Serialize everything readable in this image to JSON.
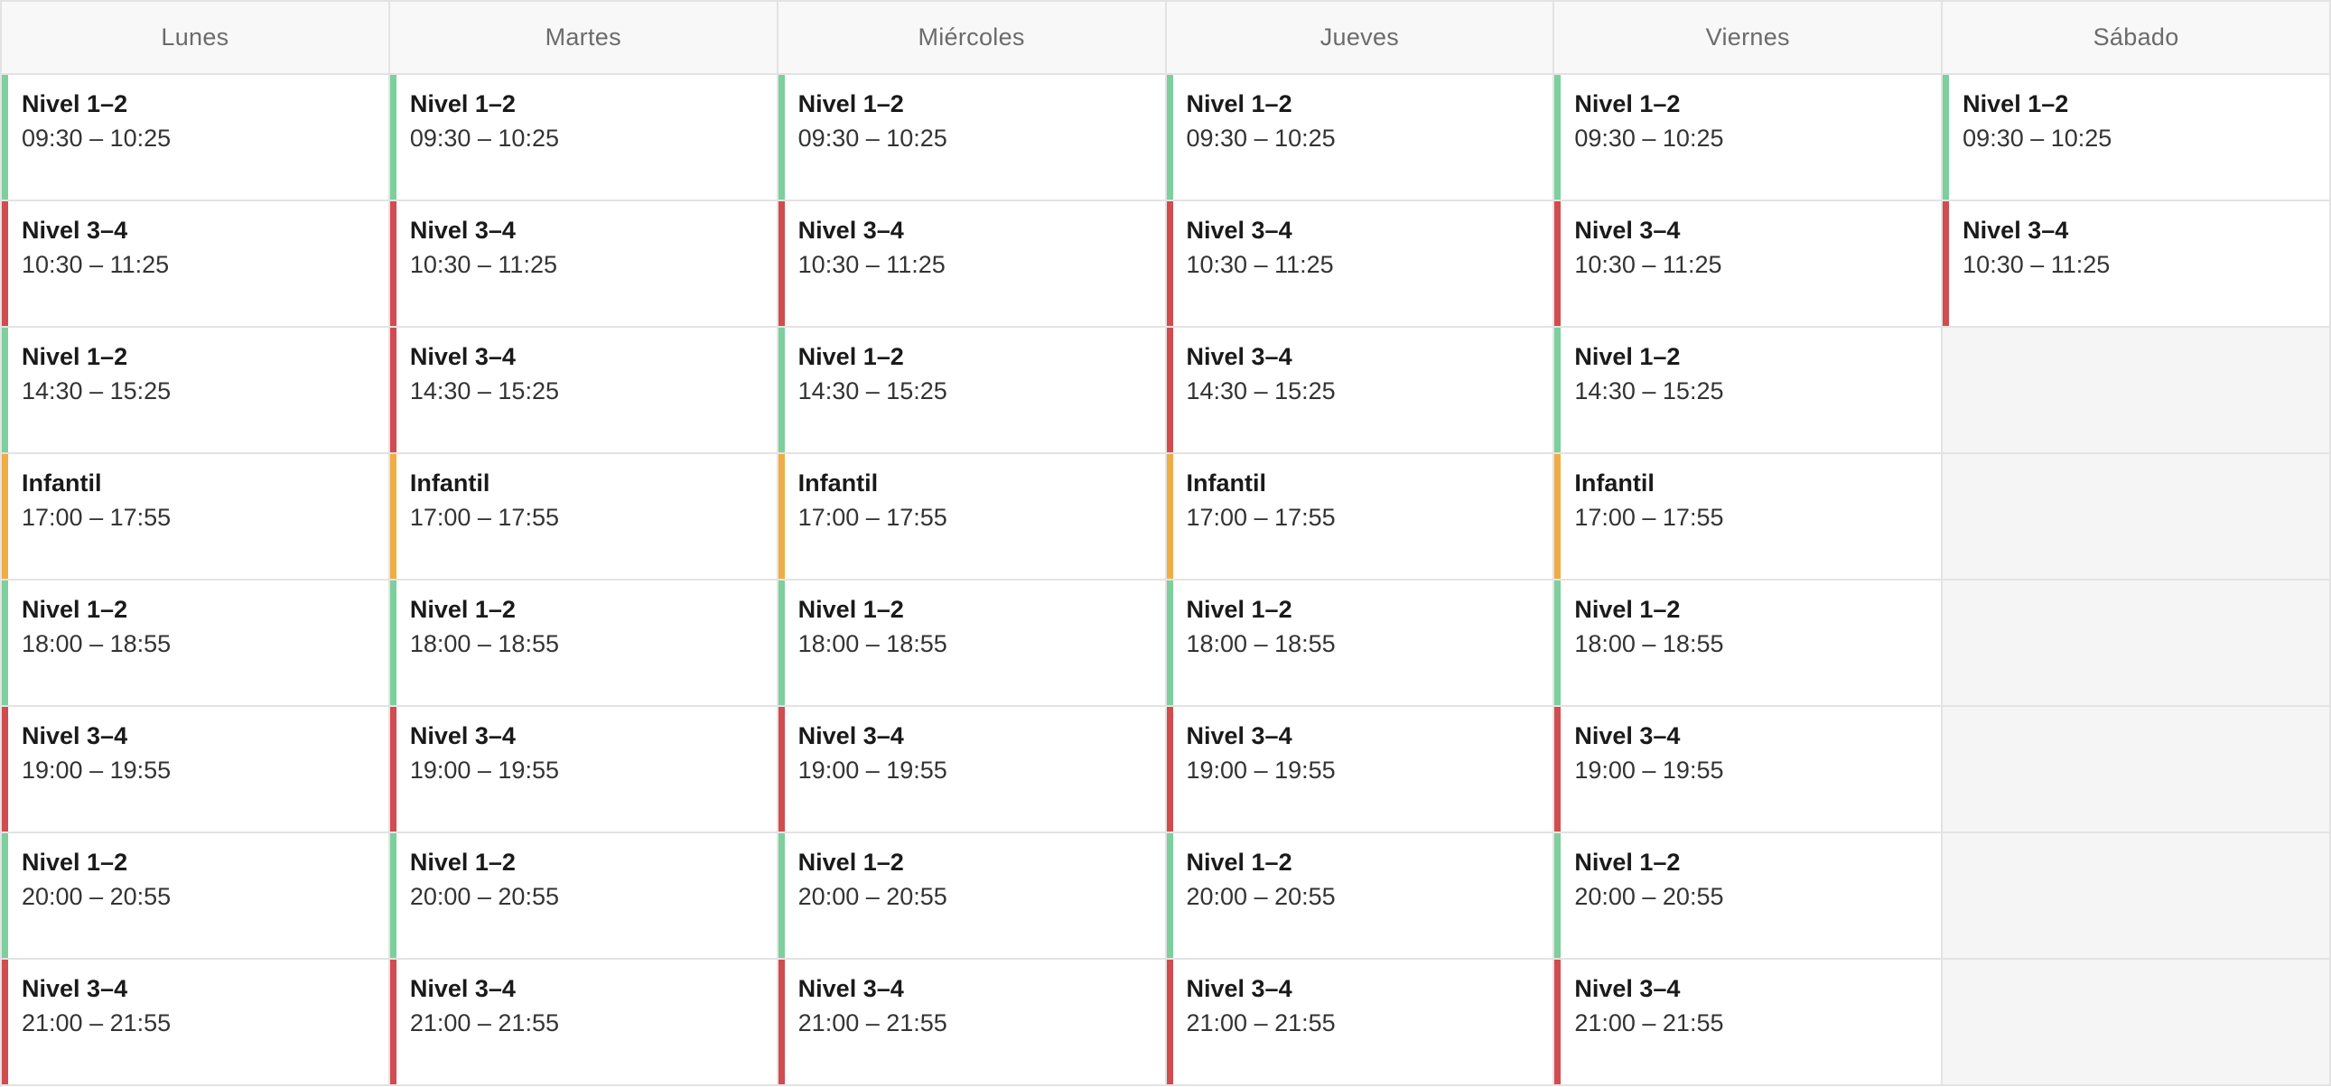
{
  "colors": {
    "Nivel 1–2": "#7dcf9c",
    "Nivel 3–4": "#d24b4e",
    "Infantil": "#f0ac45"
  },
  "days": [
    {
      "name": "Lunes",
      "classes": [
        {
          "title": "Nivel 1–2",
          "time": "09:30 – 10:25"
        },
        {
          "title": "Nivel 3–4",
          "time": "10:30 – 11:25"
        },
        {
          "title": "Nivel 1–2",
          "time": "14:30 – 15:25"
        },
        {
          "title": "Infantil",
          "time": "17:00 – 17:55"
        },
        {
          "title": "Nivel 1–2",
          "time": "18:00 – 18:55"
        },
        {
          "title": "Nivel 3–4",
          "time": "19:00 – 19:55"
        },
        {
          "title": "Nivel 1–2",
          "time": "20:00 – 20:55"
        },
        {
          "title": "Nivel 3–4",
          "time": "21:00 – 21:55"
        }
      ]
    },
    {
      "name": "Martes",
      "classes": [
        {
          "title": "Nivel 1–2",
          "time": "09:30 – 10:25"
        },
        {
          "title": "Nivel 3–4",
          "time": "10:30 – 11:25"
        },
        {
          "title": "Nivel 3–4",
          "time": "14:30 – 15:25"
        },
        {
          "title": "Infantil",
          "time": "17:00 – 17:55"
        },
        {
          "title": "Nivel 1–2",
          "time": "18:00 – 18:55"
        },
        {
          "title": "Nivel 3–4",
          "time": "19:00 – 19:55"
        },
        {
          "title": "Nivel 1–2",
          "time": "20:00 – 20:55"
        },
        {
          "title": "Nivel 3–4",
          "time": "21:00 – 21:55"
        }
      ]
    },
    {
      "name": "Miércoles",
      "classes": [
        {
          "title": "Nivel 1–2",
          "time": "09:30 – 10:25"
        },
        {
          "title": "Nivel 3–4",
          "time": "10:30 – 11:25"
        },
        {
          "title": "Nivel 1–2",
          "time": "14:30 – 15:25"
        },
        {
          "title": "Infantil",
          "time": "17:00 – 17:55"
        },
        {
          "title": "Nivel 1–2",
          "time": "18:00 – 18:55"
        },
        {
          "title": "Nivel 3–4",
          "time": "19:00 – 19:55"
        },
        {
          "title": "Nivel 1–2",
          "time": "20:00 – 20:55"
        },
        {
          "title": "Nivel 3–4",
          "time": "21:00 – 21:55"
        }
      ]
    },
    {
      "name": "Jueves",
      "classes": [
        {
          "title": "Nivel 1–2",
          "time": "09:30 – 10:25"
        },
        {
          "title": "Nivel 3–4",
          "time": "10:30 – 11:25"
        },
        {
          "title": "Nivel 3–4",
          "time": "14:30 – 15:25"
        },
        {
          "title": "Infantil",
          "time": "17:00 – 17:55"
        },
        {
          "title": "Nivel 1–2",
          "time": "18:00 – 18:55"
        },
        {
          "title": "Nivel 3–4",
          "time": "19:00 – 19:55"
        },
        {
          "title": "Nivel 1–2",
          "time": "20:00 – 20:55"
        },
        {
          "title": "Nivel 3–4",
          "time": "21:00 – 21:55"
        }
      ]
    },
    {
      "name": "Viernes",
      "classes": [
        {
          "title": "Nivel 1–2",
          "time": "09:30 – 10:25"
        },
        {
          "title": "Nivel 3–4",
          "time": "10:30 – 11:25"
        },
        {
          "title": "Nivel 1–2",
          "time": "14:30 – 15:25"
        },
        {
          "title": "Infantil",
          "time": "17:00 – 17:55"
        },
        {
          "title": "Nivel 1–2",
          "time": "18:00 – 18:55"
        },
        {
          "title": "Nivel 3–4",
          "time": "19:00 – 19:55"
        },
        {
          "title": "Nivel 1–2",
          "time": "20:00 – 20:55"
        },
        {
          "title": "Nivel 3–4",
          "time": "21:00 – 21:55"
        }
      ]
    },
    {
      "name": "Sábado",
      "classes": [
        {
          "title": "Nivel 1–2",
          "time": "09:30 – 10:25"
        },
        {
          "title": "Nivel 3–4",
          "time": "10:30 – 11:25"
        },
        null,
        null,
        null,
        null,
        null,
        null
      ]
    }
  ]
}
